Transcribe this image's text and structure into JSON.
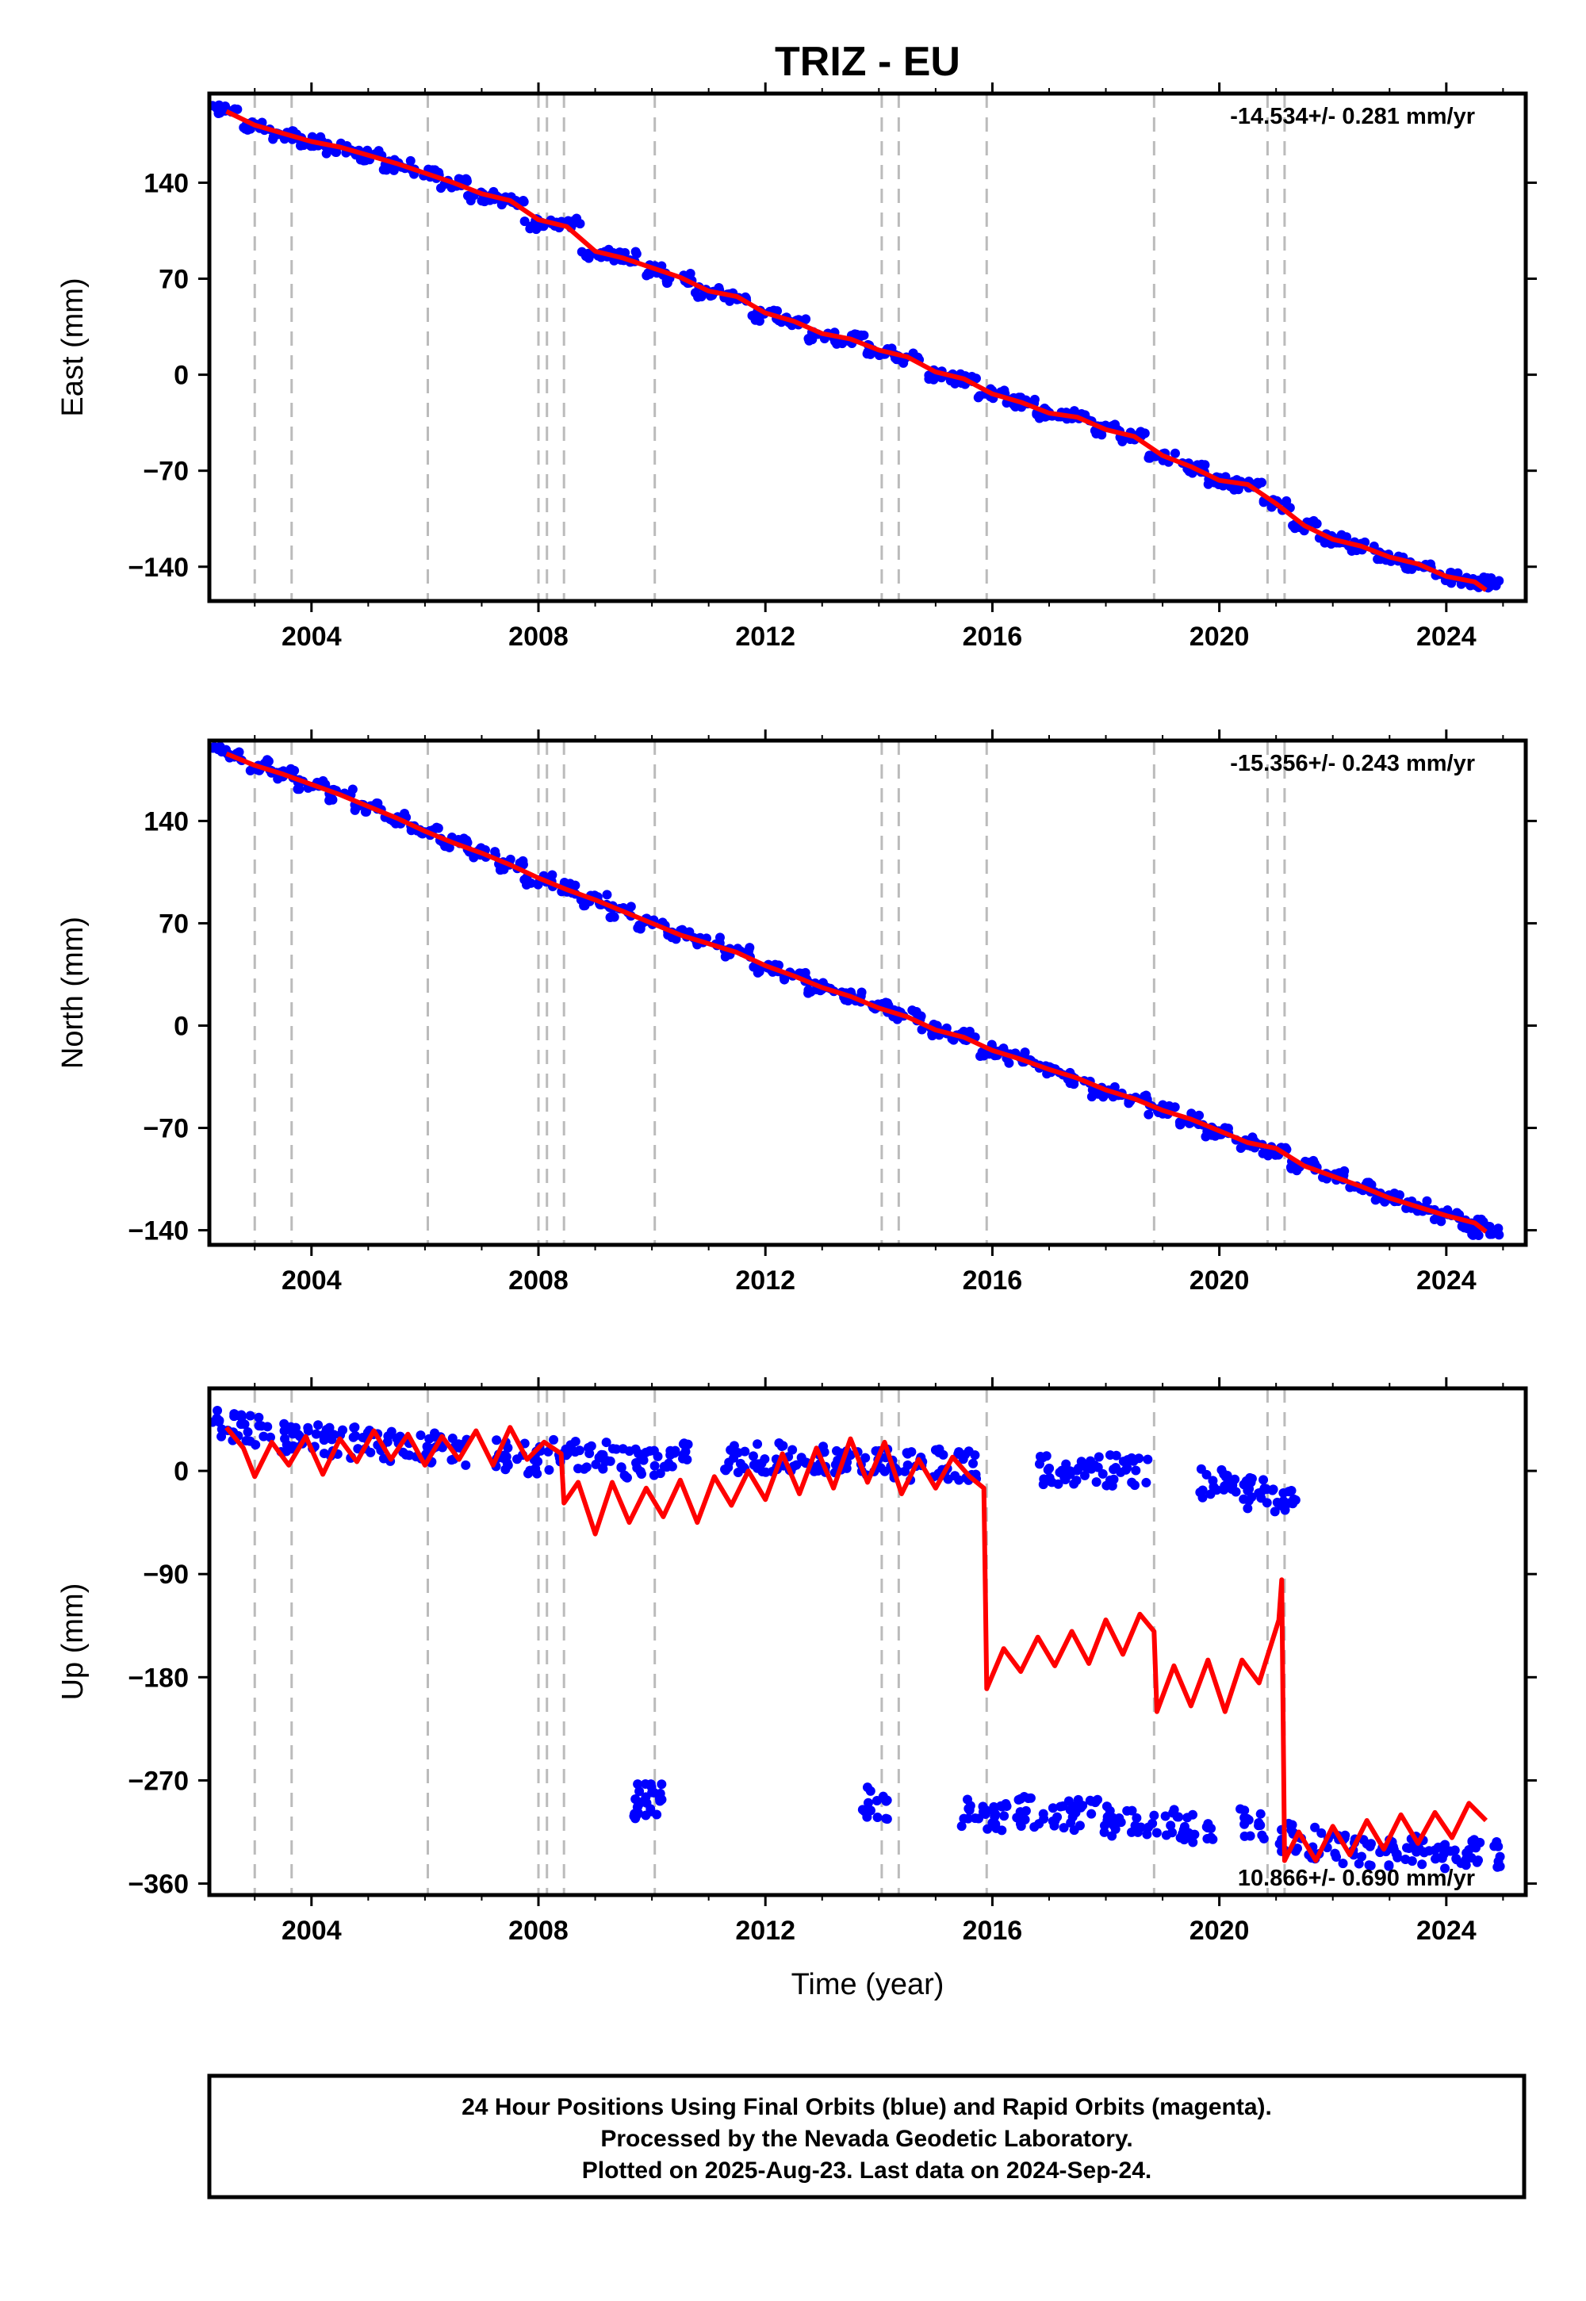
{
  "title": "TRIZ - EU",
  "xlabel": "Time (year)",
  "footer": {
    "line1": "24 Hour Positions Using Final Orbits (blue) and Rapid Orbits (magenta).",
    "line2": "Processed by the Nevada Geodetic Laboratory.",
    "line3": "Plotted on 2025-Aug-23. Last data on 2024-Sep-24."
  },
  "colors": {
    "data_points": "#0000ff",
    "model_line": "#ff0000",
    "event_lines": "#bbbbbb",
    "frame": "#000000"
  },
  "chart_data": [
    {
      "type": "scatter",
      "component": "east",
      "ylabel": "East (mm)",
      "rate_label": "-14.534+/- 0.281 mm/yr",
      "xlim": [
        2002.2,
        2025.4
      ],
      "ylim": [
        -165,
        205
      ],
      "x_ticks": [
        "2004",
        "2008",
        "2012",
        "2016",
        "2020",
        "2024"
      ],
      "y_ticks": [
        "140",
        "70",
        "0",
        "-70",
        "-140"
      ],
      "event_years": [
        2003.0,
        2003.65,
        2006.05,
        2008.0,
        2008.15,
        2008.45,
        2010.05,
        2014.05,
        2014.35,
        2015.9,
        2018.85,
        2020.85,
        2021.15
      ],
      "series": [
        {
          "kind": "points",
          "x": [
            2002.5,
            2003.0,
            2003.5,
            2004.0,
            2004.5,
            2005.0,
            2005.5,
            2006.0,
            2006.5,
            2007.0,
            2007.5,
            2008.0,
            2008.5,
            2009.0,
            2009.5,
            2010.0,
            2010.5,
            2011.0,
            2011.5,
            2012.0,
            2012.5,
            2013.0,
            2013.5,
            2014.0,
            2014.5,
            2015.0,
            2015.5,
            2016.0,
            2016.5,
            2017.0,
            2017.5,
            2018.0,
            2018.5,
            2019.0,
            2019.5,
            2020.0,
            2020.5,
            2021.0,
            2021.5,
            2022.0,
            2022.5,
            2023.0,
            2023.5,
            2024.0,
            2024.5,
            2024.7
          ],
          "y": [
            194,
            182,
            175,
            170,
            165,
            160,
            153,
            146,
            140,
            130,
            127,
            110,
            110,
            88,
            86,
            76,
            70,
            60,
            57,
            43,
            38,
            28,
            26,
            18,
            12,
            0,
            -3,
            -14,
            -20,
            -28,
            -30,
            -40,
            -45,
            -60,
            -68,
            -78,
            -80,
            -95,
            -110,
            -120,
            -125,
            -133,
            -138,
            -148,
            -150,
            -152
          ]
        },
        {
          "kind": "model",
          "x": [
            2002.5,
            2003.0,
            2003.5,
            2004.0,
            2004.5,
            2005.0,
            2005.5,
            2006.0,
            2006.5,
            2007.0,
            2007.5,
            2008.0,
            2008.5,
            2009.0,
            2009.5,
            2010.0,
            2010.5,
            2011.0,
            2011.5,
            2012.0,
            2012.5,
            2013.0,
            2013.5,
            2014.0,
            2014.5,
            2015.0,
            2015.5,
            2016.0,
            2016.5,
            2017.0,
            2017.5,
            2018.0,
            2018.5,
            2019.0,
            2019.5,
            2020.0,
            2020.5,
            2021.0,
            2021.5,
            2022.0,
            2022.5,
            2023.0,
            2023.5,
            2024.0,
            2024.5,
            2024.7
          ],
          "y": [
            192,
            182,
            176,
            170,
            166,
            160,
            154,
            147,
            140,
            132,
            127,
            113,
            108,
            90,
            85,
            78,
            71,
            61,
            57,
            45,
            39,
            30,
            26,
            18,
            13,
            2,
            -3,
            -14,
            -20,
            -28,
            -31,
            -40,
            -45,
            -59,
            -67,
            -77,
            -80,
            -94,
            -110,
            -120,
            -125,
            -133,
            -138,
            -147,
            -151,
            -157
          ]
        }
      ]
    },
    {
      "type": "scatter",
      "component": "north",
      "ylabel": "North (mm)",
      "rate_label": "-15.356+/- 0.243 mm/yr",
      "xlim": [
        2002.2,
        2025.4
      ],
      "ylim": [
        -150,
        195
      ],
      "x_ticks": [
        "2004",
        "2008",
        "2012",
        "2016",
        "2020",
        "2024"
      ],
      "y_ticks": [
        "140",
        "70",
        "0",
        "-70",
        "-140"
      ],
      "event_years": [
        2003.0,
        2003.65,
        2006.05,
        2008.0,
        2008.15,
        2008.45,
        2010.05,
        2014.05,
        2014.35,
        2015.9,
        2018.85,
        2020.85,
        2021.15
      ],
      "series": [
        {
          "kind": "points",
          "x": [
            2002.5,
            2003.0,
            2003.5,
            2004.0,
            2004.5,
            2005.0,
            2005.5,
            2006.0,
            2006.5,
            2007.0,
            2007.5,
            2008.0,
            2008.5,
            2009.0,
            2009.5,
            2010.0,
            2010.5,
            2011.0,
            2011.5,
            2012.0,
            2012.5,
            2013.0,
            2013.5,
            2014.0,
            2014.5,
            2015.0,
            2015.5,
            2016.0,
            2016.5,
            2017.0,
            2017.5,
            2018.0,
            2018.5,
            2019.0,
            2019.5,
            2020.0,
            2020.5,
            2021.0,
            2021.5,
            2022.0,
            2022.5,
            2023.0,
            2023.5,
            2024.0,
            2024.5,
            2024.7
          ],
          "y": [
            187,
            178,
            172,
            165,
            158,
            150,
            142,
            133,
            125,
            118,
            110,
            100,
            94,
            86,
            78,
            70,
            63,
            57,
            50,
            40,
            34,
            26,
            20,
            12,
            7,
            -3,
            -7,
            -17,
            -22,
            -30,
            -36,
            -45,
            -50,
            -58,
            -64,
            -72,
            -80,
            -85,
            -96,
            -103,
            -110,
            -118,
            -124,
            -130,
            -135,
            -140
          ]
        },
        {
          "kind": "model",
          "x": [
            2002.5,
            2003.0,
            2003.5,
            2004.0,
            2004.5,
            2005.0,
            2005.5,
            2006.0,
            2006.5,
            2007.0,
            2007.5,
            2008.0,
            2008.5,
            2009.0,
            2009.5,
            2010.0,
            2010.5,
            2011.0,
            2011.5,
            2012.0,
            2012.5,
            2013.0,
            2013.5,
            2014.0,
            2014.5,
            2015.0,
            2015.5,
            2016.0,
            2016.5,
            2017.0,
            2017.5,
            2018.0,
            2018.5,
            2019.0,
            2019.5,
            2020.0,
            2020.5,
            2021.0,
            2021.5,
            2022.0,
            2022.5,
            2023.0,
            2023.5,
            2024.0,
            2024.5,
            2024.7
          ],
          "y": [
            186,
            178,
            172,
            165,
            158,
            150,
            142,
            133,
            125,
            118,
            110,
            101,
            93,
            86,
            78,
            70,
            62,
            56,
            50,
            41,
            34,
            26,
            20,
            12,
            6,
            -3,
            -8,
            -17,
            -23,
            -30,
            -36,
            -44,
            -50,
            -58,
            -64,
            -72,
            -80,
            -84,
            -96,
            -103,
            -110,
            -118,
            -124,
            -130,
            -135,
            -141
          ]
        }
      ]
    },
    {
      "type": "scatter",
      "component": "up",
      "ylabel": "Up (mm)",
      "rate_label": "10.866+/- 0.690 mm/yr",
      "xlim": [
        2002.2,
        2025.4
      ],
      "ylim": [
        -370,
        72
      ],
      "x_ticks": [
        "2004",
        "2008",
        "2012",
        "2016",
        "2020",
        "2024"
      ],
      "y_ticks": [
        "0",
        "-90",
        "-180",
        "-270",
        "-360"
      ],
      "event_years": [
        2003.0,
        2003.65,
        2006.05,
        2008.0,
        2008.15,
        2008.45,
        2010.05,
        2014.05,
        2014.35,
        2015.9,
        2018.85,
        2020.85,
        2021.15
      ],
      "series": [
        {
          "kind": "points",
          "x": [
            2002.5,
            2003.0,
            2003.5,
            2004.0,
            2004.5,
            2005.0,
            2005.5,
            2006.0,
            2006.5,
            2007.5,
            2008.0,
            2008.5,
            2009.0,
            2009.5,
            2010.0,
            2010.5,
            2011.5,
            2012.0,
            2012.5,
            2013.0,
            2013.5,
            2014.0,
            2014.5,
            2015.0,
            2015.5,
            2017.0,
            2017.5,
            2018.0,
            2018.5,
            2019.9,
            2020.3,
            2020.7,
            2021.1,
            2009.9,
            2009.95,
            2013.9,
            2015.7,
            2016.2,
            2016.7,
            2017.2,
            2017.7,
            2018.2,
            2018.7,
            2019.2,
            2019.7,
            2020.6,
            2021.3,
            2021.8,
            2022.3,
            2022.8,
            2023.3,
            2023.8,
            2024.3,
            2024.7
          ],
          "y": [
            40,
            35,
            30,
            28,
            25,
            30,
            22,
            20,
            18,
            15,
            10,
            15,
            12,
            8,
            10,
            12,
            10,
            12,
            10,
            8,
            8,
            5,
            5,
            5,
            5,
            0,
            -2,
            0,
            -2,
            -10,
            -15,
            -20,
            -25,
            -290,
            -285,
            -290,
            -300,
            -300,
            -298,
            -302,
            -300,
            -305,
            -305,
            -308,
            -310,
            -308,
            -320,
            -325,
            -330,
            -332,
            -330,
            -335,
            -335,
            -335
          ]
        },
        {
          "kind": "model",
          "x": [
            2002.5,
            2002.8,
            2003.0,
            2003.3,
            2003.6,
            2003.9,
            2004.2,
            2004.5,
            2004.8,
            2005.1,
            2005.4,
            2005.7,
            2006.0,
            2006.3,
            2006.6,
            2006.9,
            2007.2,
            2007.5,
            2007.8,
            2008.1,
            2008.4,
            2008.45,
            2008.7,
            2009.0,
            2009.3,
            2009.6,
            2009.9,
            2010.2,
            2010.5,
            2010.8,
            2011.1,
            2011.4,
            2011.7,
            2012.0,
            2012.3,
            2012.6,
            2012.9,
            2013.2,
            2013.5,
            2013.8,
            2014.1,
            2014.4,
            2014.7,
            2015.0,
            2015.3,
            2015.6,
            2015.85,
            2015.9,
            2016.2,
            2016.5,
            2016.8,
            2017.1,
            2017.4,
            2017.7,
            2018.0,
            2018.3,
            2018.6,
            2018.85,
            2018.9,
            2019.2,
            2019.5,
            2019.8,
            2020.1,
            2020.4,
            2020.7,
            2021.05,
            2021.1,
            2021.15,
            2021.4,
            2021.7,
            2022.0,
            2022.3,
            2022.6,
            2022.9,
            2023.2,
            2023.5,
            2023.8,
            2024.1,
            2024.4,
            2024.7
          ],
          "y": [
            38,
            20,
            -5,
            25,
            5,
            30,
            -3,
            28,
            8,
            35,
            10,
            32,
            5,
            30,
            10,
            35,
            5,
            38,
            10,
            25,
            15,
            -28,
            -10,
            -55,
            -10,
            -45,
            -15,
            -40,
            -8,
            -45,
            -5,
            -30,
            0,
            -25,
            15,
            -20,
            20,
            -15,
            28,
            -10,
            25,
            -20,
            10,
            -15,
            12,
            -5,
            -15,
            -190,
            -155,
            -175,
            -145,
            -170,
            -140,
            -168,
            -130,
            -160,
            -125,
            -140,
            -210,
            -170,
            -205,
            -165,
            -210,
            -165,
            -185,
            -130,
            -95,
            -340,
            -315,
            -340,
            -310,
            -335,
            -305,
            -330,
            -300,
            -325,
            -298,
            -320,
            -290,
            -305
          ]
        }
      ]
    }
  ]
}
